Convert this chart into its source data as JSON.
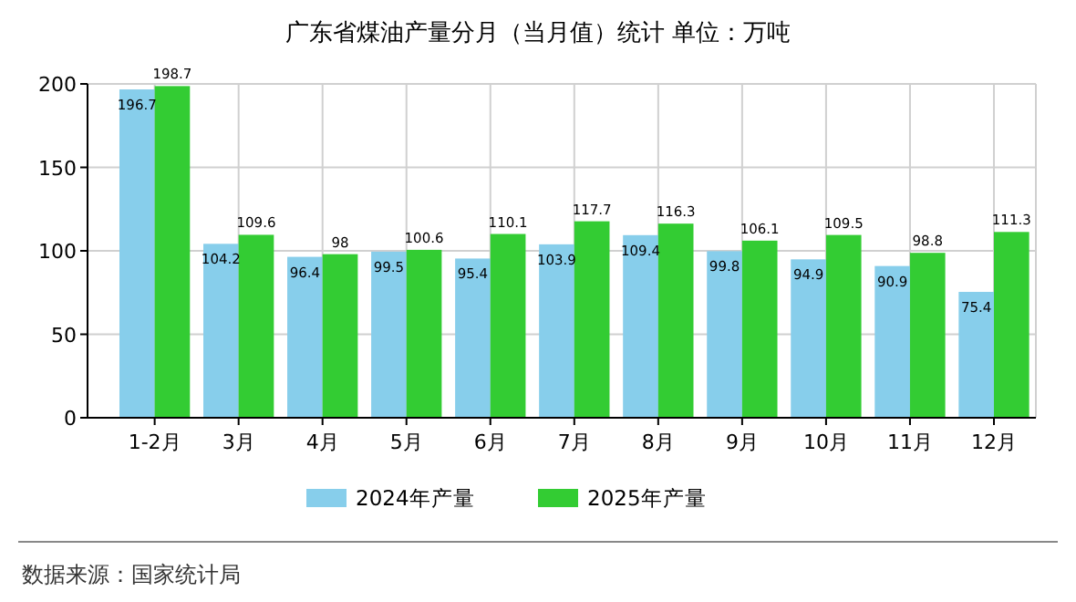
{
  "chart_data": {
    "type": "bar",
    "title": "广东省煤油产量分月（当月值）统计 单位：万吨",
    "categories": [
      "1-2月",
      "3月",
      "4月",
      "5月",
      "6月",
      "7月",
      "8月",
      "9月",
      "10月",
      "11月",
      "12月"
    ],
    "series": [
      {
        "name": "2024年产量",
        "color": "#87ceeb",
        "values": [
          196.7,
          104.2,
          96.4,
          99.5,
          95.4,
          103.9,
          109.4,
          99.8,
          94.9,
          90.9,
          75.4
        ]
      },
      {
        "name": "2025年产量",
        "color": "#33cc33",
        "values": [
          198.7,
          109.6,
          98,
          100.6,
          110.1,
          117.7,
          116.3,
          106.1,
          109.5,
          98.8,
          111.3
        ]
      }
    ],
    "ylim": [
      0,
      200
    ],
    "yticks": [
      0,
      50,
      100,
      150,
      200
    ],
    "grid": true,
    "legend": "bottom",
    "data_labels": true,
    "annotations": [
      "数据来源：国家统计局"
    ]
  }
}
